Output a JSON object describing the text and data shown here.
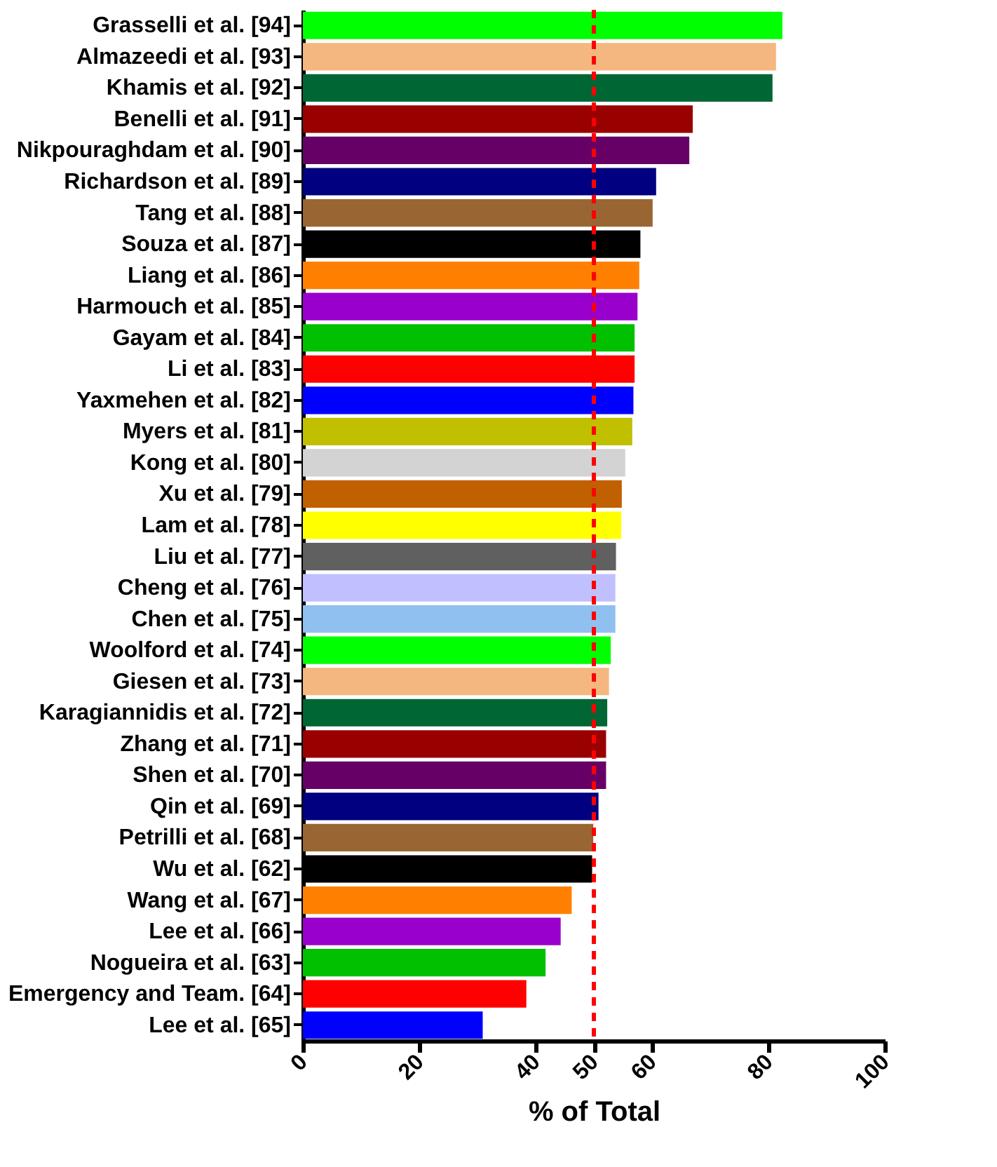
{
  "chart_data": {
    "type": "bar",
    "orientation": "horizontal",
    "xlabel": "% of Total",
    "categories": [
      "Grasselli et al. [94]",
      "Almazeedi et al. [93]",
      "Khamis et al. [92]",
      "Benelli et al. [91]",
      "Nikpouraghdam et al. [90]",
      "Richardson et al. [89]",
      "Tang et al. [88]",
      "Souza et al. [87]",
      "Liang et al. [86]",
      "Harmouch et al. [85]",
      "Gayam et al. [84]",
      "Li et al. [83]",
      "Yaxmehen et al. [82]",
      "Myers et al. [81]",
      "Kong et al. [80]",
      "Xu et al. [79]",
      "Lam et al. [78]",
      "Liu et al. [77]",
      "Cheng et al. [76]",
      "Chen et al. [75]",
      "Woolford et al. [74]",
      "Giesen et al. [73]",
      "Karagiannidis et al. [72]",
      "Zhang et al. [71]",
      "Shen et al. [70]",
      "Qin et al. [69]",
      "Petrilli et al. [68]",
      "Wu et al. [62]",
      "Wang et al. [67]",
      "Lee et al. [66]",
      "Nogueira et al. [63]",
      "Emergency and Team. [64]",
      "Lee et al. [65]"
    ],
    "values": [
      82.4,
      81.3,
      80.7,
      67.0,
      66.4,
      60.7,
      60.1,
      58.0,
      57.8,
      57.5,
      57.0,
      57.0,
      56.8,
      56.6,
      55.4,
      54.8,
      54.7,
      53.8,
      53.7,
      53.7,
      52.9,
      52.6,
      52.3,
      52.1,
      52.1,
      50.8,
      49.9,
      49.7,
      46.2,
      44.3,
      41.7,
      38.4,
      30.9
    ],
    "colors": [
      "#00ff00",
      "#f4b77f",
      "#006633",
      "#990000",
      "#660066",
      "#000080",
      "#996633",
      "#000000",
      "#ff8000",
      "#9900cc",
      "#00c000",
      "#ff0000",
      "#0000ff",
      "#c0c000",
      "#d3d3d3",
      "#c06000",
      "#ffff00",
      "#606060",
      "#c0c0ff",
      "#90c0f0",
      "#00ff00",
      "#f4b77f",
      "#006633",
      "#990000",
      "#660066",
      "#000080",
      "#996633",
      "#000000",
      "#ff8000",
      "#9900cc",
      "#00c000",
      "#ff0000",
      "#0000ff"
    ],
    "xlim": [
      0,
      100
    ],
    "xticks": [
      0,
      20,
      40,
      50,
      60,
      80,
      100
    ],
    "grid": false,
    "ref_lines": [
      {
        "axis": "x",
        "value": 50,
        "color": "#ff0000",
        "line_style": "dashed"
      }
    ]
  }
}
